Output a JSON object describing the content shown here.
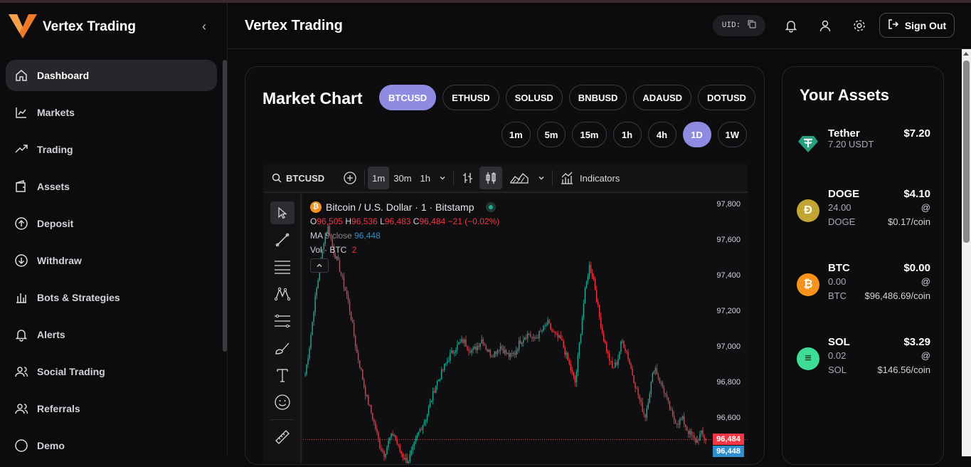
{
  "app": {
    "name": "Vertex Trading",
    "accent": "#8f8be2"
  },
  "sidebar": {
    "items": [
      {
        "label": "Dashboard",
        "icon": "home-icon",
        "active": true
      },
      {
        "label": "Markets",
        "icon": "chart-line-icon"
      },
      {
        "label": "Trading",
        "icon": "trend-up-icon"
      },
      {
        "label": "Assets",
        "icon": "wallet-icon"
      },
      {
        "label": "Deposit",
        "icon": "arrow-up-circle-icon"
      },
      {
        "label": "Withdraw",
        "icon": "arrow-down-circle-icon"
      },
      {
        "label": "Bots & Strategies",
        "icon": "bar-chart-icon"
      },
      {
        "label": "Alerts",
        "icon": "bell-icon"
      },
      {
        "label": "Social Trading",
        "icon": "users-icon"
      },
      {
        "label": "Referrals",
        "icon": "user-plus-icon"
      },
      {
        "label": "Demo",
        "icon": "circle-icon"
      }
    ]
  },
  "header": {
    "title": "Vertex Trading",
    "uid_label": "UID:",
    "sign_out": "Sign Out"
  },
  "market": {
    "title": "Market Chart",
    "pairs": [
      "BTCUSD",
      "ETHUSD",
      "SOLUSD",
      "BNBUSD",
      "ADAUSD",
      "DOTUSD"
    ],
    "selected_pair": "BTCUSD",
    "timeframes": [
      "1m",
      "5m",
      "15m",
      "1h",
      "4h",
      "1D",
      "1W"
    ],
    "selected_timeframe": "1D"
  },
  "chart": {
    "symbol": "BTCUSD",
    "intervals": [
      "1m",
      "30m",
      "1h"
    ],
    "indicators_label": "Indicators",
    "legend_title": "Bitcoin / U.S. Dollar · 1 · Bitstamp",
    "ohlc": {
      "o": "96,505",
      "h": "96,536",
      "l": "96,483",
      "c": "96,484",
      "chg": "−21 (−0.02%)"
    },
    "ma": {
      "label": "MA",
      "params": "9 close",
      "value": "96,448"
    },
    "vol": {
      "label": "Vol · BTC",
      "value": "2"
    },
    "y_ticks": [
      "97,800",
      "97,600",
      "97,400",
      "97,200",
      "97,000",
      "96,800",
      "96,600",
      "96,400"
    ],
    "last_price": "96,484",
    "ma_price": "96,448"
  },
  "chart_data": {
    "type": "candlestick",
    "title": "Bitcoin / U.S. Dollar · 1 · Bitstamp",
    "ylim": [
      96350,
      97860
    ],
    "close_series": [
      96850,
      97020,
      97250,
      97420,
      97600,
      97680,
      97550,
      97480,
      97380,
      97290,
      97150,
      96980,
      96870,
      96740,
      96650,
      96560,
      96450,
      96400,
      96480,
      96520,
      96440,
      96390,
      96360,
      96420,
      96500,
      96560,
      96610,
      96700,
      96790,
      96840,
      96900,
      96950,
      96990,
      97020,
      97040,
      97000,
      96980,
      97010,
      97050,
      96990,
      96960,
      96980,
      97010,
      96970,
      96950,
      96970,
      97030,
      97060,
      97080,
      97040,
      97070,
      97100,
      97140,
      97090,
      97060,
      97040,
      96960,
      96880,
      96800,
      97050,
      97300,
      97460,
      97380,
      97200,
      97060,
      96960,
      96880,
      96920,
      97040,
      96980,
      96880,
      96780,
      96690,
      96610,
      96760,
      96900,
      96820,
      96760,
      96680,
      96600,
      96580,
      96600,
      96540,
      96500,
      96470,
      96520,
      96484
    ]
  }
}
